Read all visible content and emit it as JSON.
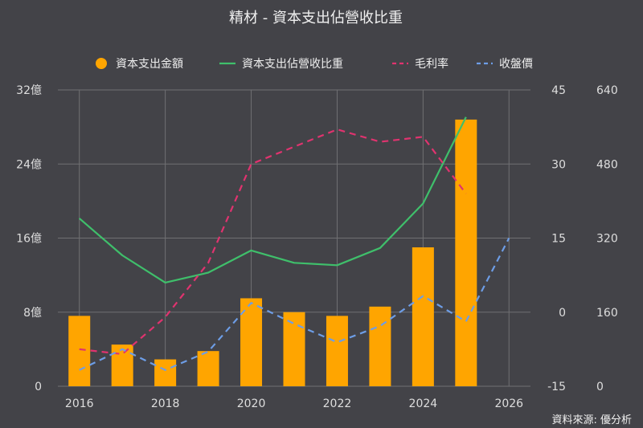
{
  "title": "精材 - 資本支出佔營收比重",
  "source": "資料來源: 優分析",
  "colors": {
    "background": "#434348",
    "grid": "#707073",
    "bar": "#ffa500",
    "capex_ratio": "#3fbf6b",
    "gross_margin": "#e0336f",
    "price": "#6d9de6"
  },
  "chart_data": {
    "type": "bar",
    "title": "精材 - 資本支出佔營收比重",
    "x": [
      2016,
      2017,
      2018,
      2019,
      2020,
      2021,
      2022,
      2023,
      2024,
      2025
    ],
    "xlim": [
      2015.5,
      2026.5
    ],
    "x_ticks": [
      "2016",
      "2018",
      "2020",
      "2022",
      "2024",
      "2026"
    ],
    "axes": {
      "left": {
        "ticks": [
          "0",
          "8億",
          "16億",
          "24億",
          "32億"
        ],
        "range": [
          0,
          32
        ]
      },
      "right1": {
        "ticks": [
          "-15",
          "0",
          "15",
          "30",
          "45"
        ],
        "range": [
          -15,
          45
        ]
      },
      "right2": {
        "ticks": [
          "0",
          "160",
          "320",
          "480",
          "640"
        ],
        "range": [
          0,
          640
        ]
      }
    },
    "grid": true,
    "legend_position": "top",
    "series": [
      {
        "name": "資本支出金額",
        "kind": "bar",
        "axis": "left",
        "values": [
          7.6,
          4.5,
          2.9,
          3.8,
          9.5,
          8.0,
          7.6,
          8.6,
          15.0,
          28.8
        ]
      },
      {
        "name": "資本支出佔營收比重",
        "kind": "line",
        "axis": "right1",
        "values": [
          19.0,
          11.5,
          6.0,
          8.0,
          12.5,
          10.0,
          9.5,
          13.0,
          22.0,
          39.5
        ]
      },
      {
        "name": "毛利率",
        "kind": "dashed",
        "axis": "right1",
        "values": [
          -7.5,
          -8.5,
          -1.0,
          10.0,
          30.0,
          33.5,
          37.0,
          34.5,
          35.5,
          24.0
        ]
      },
      {
        "name": "收盤價",
        "kind": "dashed",
        "axis": "right2",
        "values": [
          35,
          80,
          35,
          75,
          180,
          135,
          95,
          130,
          195,
          140,
          320
        ],
        "x": [
          2016,
          2017,
          2018,
          2019,
          2020,
          2021,
          2022,
          2023,
          2024,
          2025,
          2026
        ]
      }
    ]
  }
}
